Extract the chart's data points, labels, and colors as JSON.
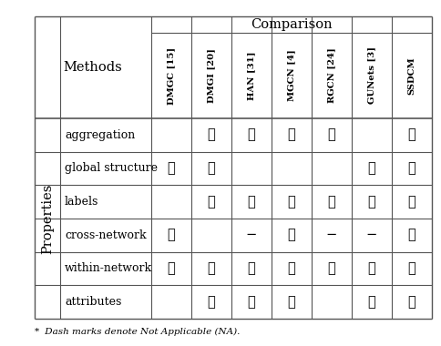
{
  "comparison_label": "Comparison",
  "methods_label": "Methods",
  "properties_label": "Properties",
  "col_headers": [
    "DMGC [15]",
    "DMGI [20]",
    "HAN [31]",
    "MGCN [4]",
    "RGCN [24]",
    "GUNets [3]",
    "SSDCM"
  ],
  "row_headers": [
    "attributes",
    "within-network",
    "cross-network",
    "labels",
    "global structure",
    "aggregation"
  ],
  "table_data": [
    [
      "",
      "✓",
      "✓",
      "✓",
      "",
      "✓",
      "✓"
    ],
    [
      "✓",
      "✓",
      "✓",
      "✓",
      "✓",
      "✓",
      "✓"
    ],
    [
      "✓",
      "",
      "−",
      "✓",
      "−",
      "−",
      "✓"
    ],
    [
      "",
      "✓",
      "✓",
      "✓",
      "✓",
      "✓",
      "✓"
    ],
    [
      "✓",
      "✓",
      "",
      "",
      "",
      "✓",
      "✓"
    ],
    [
      "",
      "✓",
      "✓",
      "✓",
      "✓",
      "",
      "✓"
    ]
  ],
  "footnote_star": "*",
  "footnote_text": " Dash marks denote Not Applicable (NA).",
  "background_color": "#ffffff",
  "line_color": "#555555",
  "text_color": "#000000"
}
